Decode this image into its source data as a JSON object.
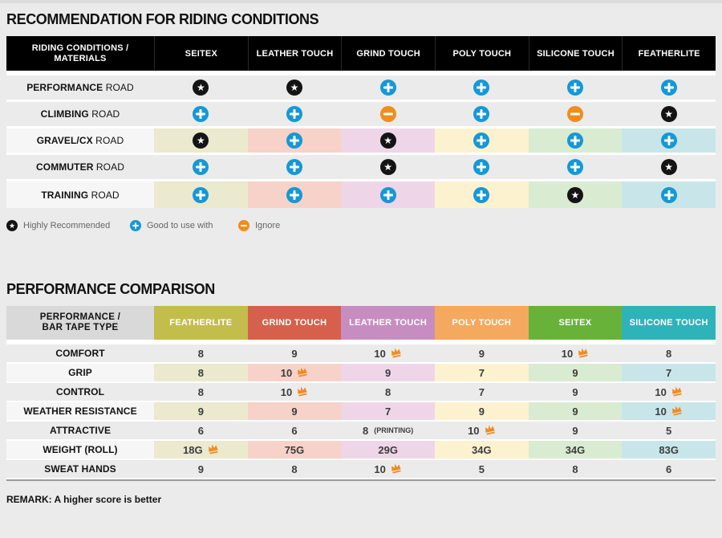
{
  "riding": {
    "title": "RECOMMENDATION FOR RIDING CONDITIONS",
    "header_label_line1": "RIDING CONDITIONS /",
    "header_label_line2": "MATERIALS",
    "columns": [
      "SEITEX",
      "LEATHER TOUCH",
      "GRIND TOUCH",
      "POLY TOUCH",
      "SILICONE TOUCH",
      "FEATHERLITE"
    ],
    "column_tints": [
      "#ebe9ce",
      "#f6d2c9",
      "#eed6e8",
      "#fdf2d0",
      "#d9ecd2",
      "#c8e6e9"
    ],
    "rows": [
      {
        "name_bold": "PERFORMANCE",
        "name_rest": "ROAD",
        "tinted": false,
        "marks": [
          "star",
          "star",
          "plus",
          "plus",
          "plus",
          "plus"
        ]
      },
      {
        "name_bold": "CLIMBING",
        "name_rest": "ROAD",
        "tinted": false,
        "marks": [
          "plus",
          "plus",
          "minus",
          "plus",
          "minus",
          "star"
        ]
      },
      {
        "name_bold": "GRAVEL/CX",
        "name_rest": "ROAD",
        "tinted": true,
        "marks": [
          "star",
          "plus",
          "star",
          "plus",
          "plus",
          "plus"
        ]
      },
      {
        "name_bold": "COMMUTER",
        "name_rest": "ROAD",
        "tinted": false,
        "marks": [
          "plus",
          "plus",
          "star",
          "plus",
          "plus",
          "star"
        ]
      },
      {
        "name_bold": "TRAINING",
        "name_rest": "ROAD",
        "tinted": true,
        "marks": [
          "plus",
          "plus",
          "plus",
          "plus",
          "star",
          "plus"
        ]
      }
    ],
    "legend": [
      {
        "icon": "star",
        "label": "Highly Recommended"
      },
      {
        "icon": "plus",
        "label": "Good to use with"
      },
      {
        "icon": "minus",
        "label": "Ignore"
      }
    ]
  },
  "performance": {
    "title": "PERFORMANCE COMPARISON",
    "header_label_line1": "PERFORMANCE /",
    "header_label_line2": "BAR TAPE TYPE",
    "columns": [
      {
        "label": "FEATHERLITE",
        "color": "#c3bd4b",
        "tint": "#ebe9ce"
      },
      {
        "label": "GRIND TOUCH",
        "color": "#d7604c",
        "tint": "#f6d2c9"
      },
      {
        "label": "LEATHER TOUCH",
        "color": "#c88dc0",
        "tint": "#eed6e8"
      },
      {
        "label": "POLY TOUCH",
        "color": "#f4a95e",
        "tint": "#fdf2d0"
      },
      {
        "label": "SEITEX",
        "color": "#69b23a",
        "tint": "#d9ecd2"
      },
      {
        "label": "SILICONE TOUCH",
        "color": "#2fb3bb",
        "tint": "#c8e6e9"
      }
    ],
    "rows": [
      {
        "label": "COMFORT",
        "tinted": false,
        "values": [
          {
            "text": "8"
          },
          {
            "text": "9"
          },
          {
            "text": "10",
            "crown": true
          },
          {
            "text": "9"
          },
          {
            "text": "10",
            "crown": true
          },
          {
            "text": "8"
          }
        ]
      },
      {
        "label": "GRIP",
        "tinted": true,
        "values": [
          {
            "text": "8"
          },
          {
            "text": "10",
            "crown": true
          },
          {
            "text": "9"
          },
          {
            "text": "7"
          },
          {
            "text": "9"
          },
          {
            "text": "7"
          }
        ]
      },
      {
        "label": "CONTROL",
        "tinted": false,
        "values": [
          {
            "text": "8"
          },
          {
            "text": "10",
            "crown": true
          },
          {
            "text": "8"
          },
          {
            "text": "7"
          },
          {
            "text": "9"
          },
          {
            "text": "10",
            "crown": true
          }
        ]
      },
      {
        "label": "WEATHER RESISTANCE",
        "tinted": true,
        "values": [
          {
            "text": "9"
          },
          {
            "text": "9"
          },
          {
            "text": "7"
          },
          {
            "text": "9"
          },
          {
            "text": "9"
          },
          {
            "text": "10",
            "crown": true
          }
        ]
      },
      {
        "label": "ATTRACTIVE",
        "tinted": false,
        "values": [
          {
            "text": "6"
          },
          {
            "text": "6"
          },
          {
            "text": "8",
            "suffix": "(PRINTING)"
          },
          {
            "text": "10",
            "crown": true
          },
          {
            "text": "9"
          },
          {
            "text": "5"
          }
        ]
      },
      {
        "label": "WEIGHT (ROLL)",
        "tinted": true,
        "values": [
          {
            "text": "18G",
            "crown": true
          },
          {
            "text": "75G"
          },
          {
            "text": "29G"
          },
          {
            "text": "34G"
          },
          {
            "text": "34G"
          },
          {
            "text": "83G"
          }
        ]
      },
      {
        "label": "SWEAT HANDS",
        "tinted": false,
        "values": [
          {
            "text": "9"
          },
          {
            "text": "8"
          },
          {
            "text": "10",
            "crown": true
          },
          {
            "text": "5"
          },
          {
            "text": "8"
          },
          {
            "text": "6"
          }
        ]
      }
    ],
    "remark": "REMARK: A higher score is better"
  },
  "colors": {
    "page_bg": "#ebebeb",
    "row_bg": "#ebebeb",
    "tinted_label_bg": "#f6f6f6",
    "header1_bg": "#000000",
    "header1_text": "#ffffff",
    "header2_label_bg": "#d9d9d9",
    "separator_line": "#9b9b9b",
    "star_icon": "#141414",
    "plus_icon": "#1598d6",
    "minus_icon": "#f08d1d",
    "crown_icon": "#f28a1f"
  }
}
